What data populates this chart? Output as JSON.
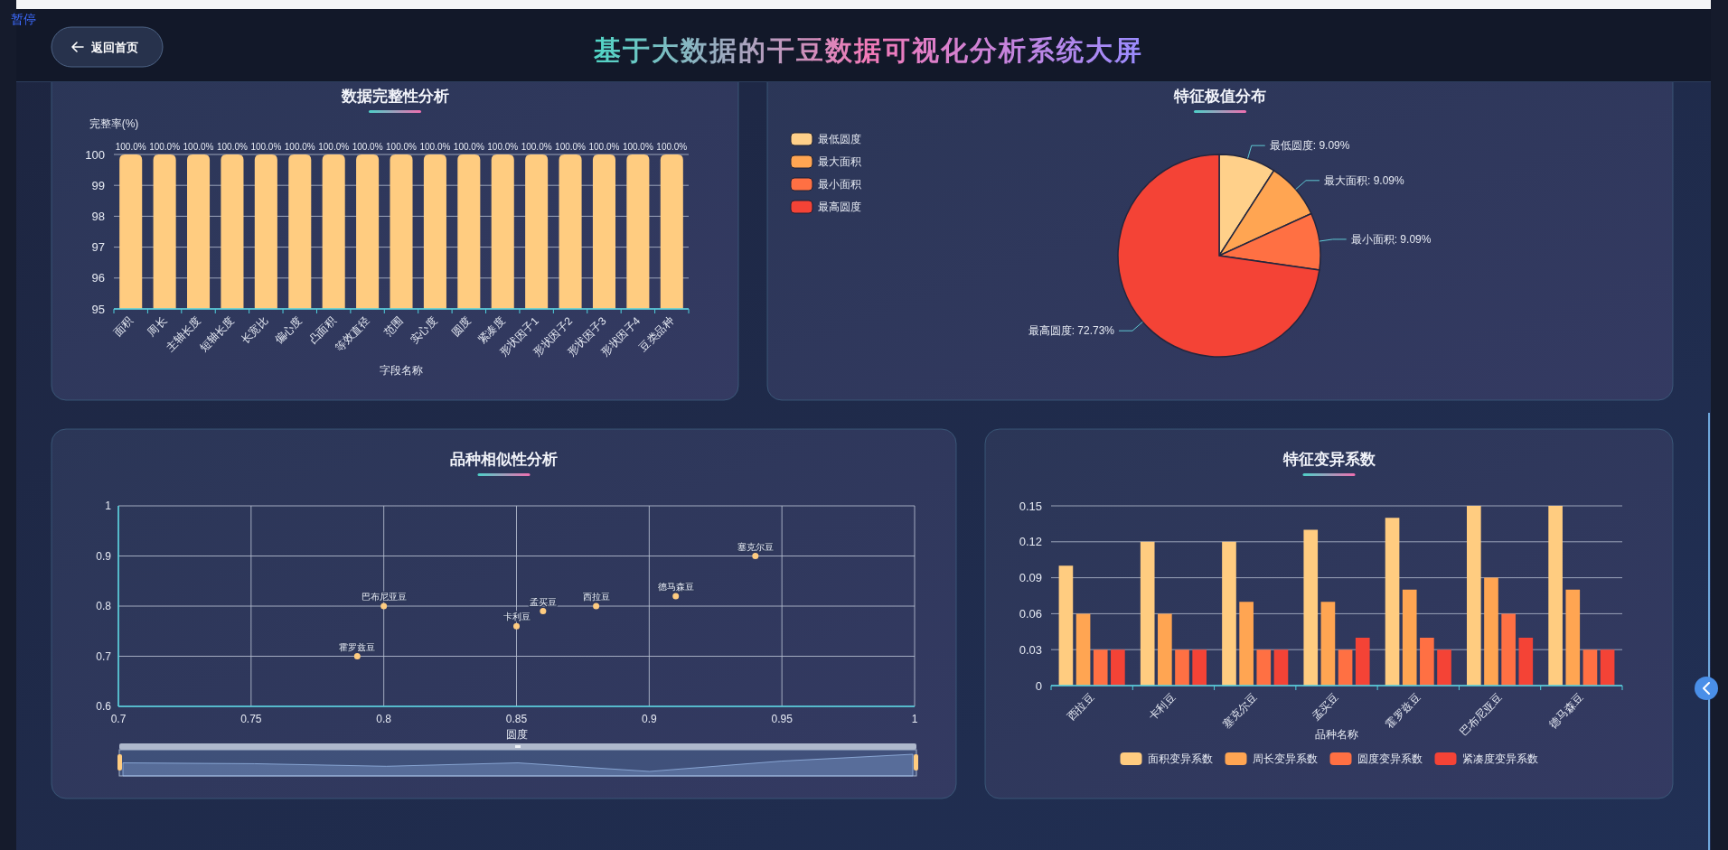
{
  "chart_data": [
    {
      "type": "other",
      "title": "基于大数据的干豆数据可视化分析系统大屏",
      "annotations": [
        "暂停",
        "返回首页"
      ]
    },
    {
      "type": "bar",
      "title": "数据完整性分析",
      "categories": [
        "面积",
        "周长",
        "主轴长度",
        "短轴长度",
        "长宽比",
        "偏心度",
        "凸面积",
        "等效直径",
        "范围",
        "实心度",
        "圆度",
        "紧凑度",
        "形状因子1",
        "形状因子2",
        "形状因子3",
        "形状因子4",
        "豆类品种"
      ],
      "values": [
        100,
        100,
        100,
        100,
        100,
        100,
        100,
        100,
        100,
        100,
        100,
        100,
        100,
        100,
        100,
        100,
        100
      ],
      "value_labels": [
        "100.0%",
        "100.0%",
        "100.0%",
        "100.0%",
        "100.0%",
        "100.0%",
        "100.0%",
        "100.0%",
        "100.0%",
        "100.0%",
        "100.0%",
        "100.0%",
        "100.0%",
        "100.0%",
        "100.0%",
        "100.0%",
        "100.0%"
      ],
      "color": "#ffcc80",
      "ylim": [
        95,
        100
      ],
      "yticks": [
        95,
        96,
        97,
        98,
        99,
        100
      ],
      "xlabel": "字段名称",
      "ylabel": "完整率(%)",
      "grid": "y"
    },
    {
      "type": "pie",
      "title": "特征极值分布",
      "categories": [
        "最低圆度",
        "最大面积",
        "最小面积",
        "最高圆度"
      ],
      "values": [
        9.09,
        9.09,
        9.09,
        72.73
      ],
      "colors": [
        "#ffd08a",
        "#ffa552",
        "#ff7043",
        "#f44336"
      ],
      "value_labels": [
        "最低圆度: 9.09%",
        "最大面积: 9.09%",
        "最小面积: 9.09%",
        "最高圆度: 72.73%"
      ],
      "legend": "top left"
    },
    {
      "type": "scatter",
      "title": "品种相似性分析",
      "x": [
        0.88,
        0.86,
        0.85,
        0.8,
        0.79,
        0.91,
        0.94
      ],
      "values": [
        0.8,
        0.79,
        0.76,
        0.8,
        0.7,
        0.82,
        0.9
      ],
      "value_labels": [
        "西拉豆",
        "孟买豆",
        "卡利豆",
        "巴布尼亚豆",
        "霍罗兹豆",
        "德马森豆",
        "塞克尔豆"
      ],
      "color": "#ffcc80",
      "marker": "circle",
      "xlabel": "圆度",
      "xlim": [
        0.7,
        1
      ],
      "xticks": [
        0.7,
        0.75,
        0.8,
        0.85,
        0.9,
        0.95,
        1
      ],
      "ylim": [
        0.6,
        1
      ],
      "yticks": [
        0.6,
        0.7,
        0.8,
        0.9,
        1
      ],
      "grid": true
    },
    {
      "type": "bar",
      "title": "特征变异系数",
      "categories": [
        "西拉豆",
        "卡利豆",
        "塞克尔豆",
        "孟买豆",
        "霍罗兹豆",
        "巴布尼亚豆",
        "德马森豆"
      ],
      "series": [
        {
          "name": "面积变异系数",
          "color": "#ffcc80",
          "values": [
            0.1,
            0.12,
            0.12,
            0.13,
            0.14,
            0.15,
            0.15
          ]
        },
        {
          "name": "周长变异系数",
          "color": "#ffa552",
          "values": [
            0.06,
            0.06,
            0.07,
            0.07,
            0.08,
            0.09,
            0.08
          ]
        },
        {
          "name": "圆度变异系数",
          "color": "#ff7043",
          "values": [
            0.03,
            0.03,
            0.03,
            0.03,
            0.04,
            0.06,
            0.03
          ]
        },
        {
          "name": "紧凑度变异系数",
          "color": "#f44336",
          "values": [
            0.03,
            0.03,
            0.03,
            0.04,
            0.03,
            0.04,
            0.03
          ]
        }
      ],
      "xlabel": "品种名称",
      "ylim": [
        0,
        0.15
      ],
      "yticks": [
        0,
        0.03,
        0.06,
        0.09,
        0.12,
        0.15
      ],
      "grid": "y",
      "legend": "bottom"
    }
  ]
}
